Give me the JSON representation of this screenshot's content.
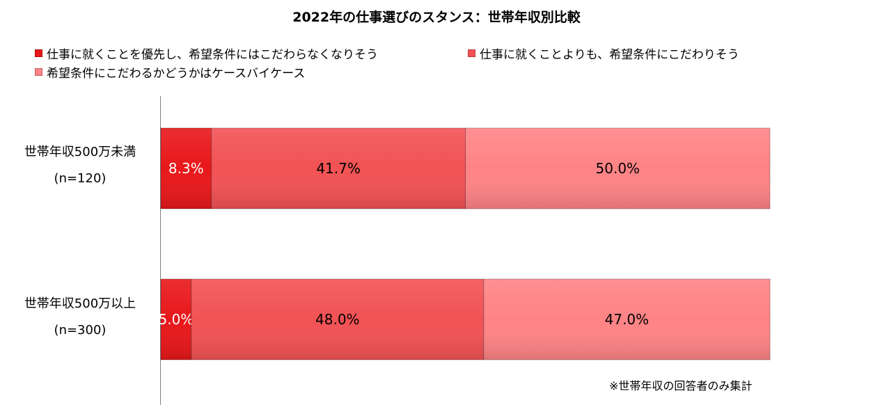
{
  "chart_data": {
    "type": "bar",
    "orientation": "horizontal",
    "stacked": true,
    "percent": true,
    "title": "2022年の仕事選びのスタンス：世帯年収別比較",
    "categories": [
      {
        "name": "世帯年収500万未満",
        "n": "(n=120)"
      },
      {
        "name": "世帯年収500万以上",
        "n": "(n=300)"
      }
    ],
    "series": [
      {
        "name": "仕事に就くことを優先し、希望条件にはこだわらなくなりそう",
        "color": "#e8171a",
        "values": [
          8.3,
          5.0
        ],
        "labels": [
          "8.3%",
          "5.0%"
        ],
        "label_color": "#ffffff"
      },
      {
        "name": "仕事に就くことよりも、希望条件にこだわりそう",
        "color": "#f25254",
        "values": [
          41.7,
          48.0
        ],
        "labels": [
          "41.7%",
          "48.0%"
        ],
        "label_color": "#000000"
      },
      {
        "name": "希望条件にこだわるかどうかはケースバイケース",
        "color": "#ff8385",
        "values": [
          50.0,
          47.0
        ],
        "labels": [
          "50.0%",
          "47.0%"
        ],
        "label_color": "#000000"
      }
    ],
    "xlim": [
      0,
      100
    ],
    "grid": false,
    "legend_position": "top",
    "note": "※世帯年収の回答者のみ集計"
  }
}
